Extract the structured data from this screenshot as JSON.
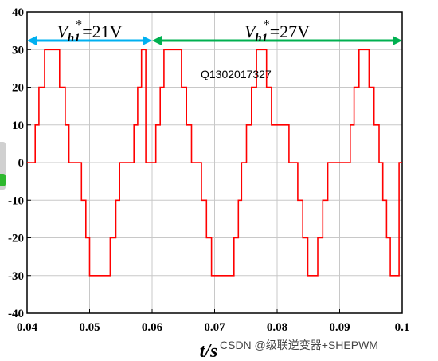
{
  "chart_data": {
    "type": "line",
    "x_ticks": [
      0.04,
      0.05,
      0.06,
      0.07,
      0.08,
      0.09,
      0.1
    ],
    "x_tick_labels": [
      "0.04",
      "0.05",
      "0.06",
      "0.07",
      "0.08",
      "0.09",
      "0.1"
    ],
    "y_ticks": [
      -40,
      -30,
      -20,
      -10,
      0,
      10,
      20,
      30,
      40
    ],
    "y_tick_labels": [
      "-40",
      "-30",
      "-20",
      "-10",
      "0",
      "10",
      "20",
      "30",
      "40"
    ],
    "xlim": [
      0.04,
      0.1
    ],
    "ylim": [
      -40,
      40
    ],
    "grid": true,
    "xlabel": "t/s",
    "ylabel": "",
    "series": [
      {
        "color": "#ff0000",
        "x": [
          0.04,
          0.0413,
          0.0413,
          0.0419,
          0.0419,
          0.0428,
          0.0428,
          0.0452,
          0.0452,
          0.0461,
          0.0461,
          0.0467,
          0.0467,
          0.0474,
          0.0474,
          0.0487,
          0.0487,
          0.0494,
          0.0494,
          0.05,
          0.05,
          0.0509,
          0.0509,
          0.0533,
          0.0533,
          0.0542,
          0.0542,
          0.0548,
          0.0548,
          0.0561,
          0.0561,
          0.0571,
          0.0571,
          0.0577,
          0.0577,
          0.0583,
          0.0583,
          0.059,
          0.059,
          0.06,
          0.06,
          0.0606,
          0.0606,
          0.0613,
          0.0613,
          0.0619,
          0.0619,
          0.0647,
          0.0647,
          0.0655,
          0.0655,
          0.0663,
          0.0663,
          0.0671,
          0.0671,
          0.0679,
          0.0679,
          0.0687,
          0.0687,
          0.0695,
          0.0695,
          0.0703,
          0.0703,
          0.0731,
          0.0731,
          0.0738,
          0.0738,
          0.0743,
          0.0743,
          0.0751,
          0.0751,
          0.0759,
          0.0759,
          0.0767,
          0.0767,
          0.0775,
          0.0775,
          0.0783,
          0.0783,
          0.0791,
          0.0791,
          0.0819,
          0.0819,
          0.0827,
          0.0827,
          0.0833,
          0.0833,
          0.0841,
          0.0841,
          0.0849,
          0.0849,
          0.0857,
          0.0857,
          0.0865,
          0.0865,
          0.0873,
          0.0873,
          0.0881,
          0.0881,
          0.0909,
          0.0909,
          0.0917,
          0.0917,
          0.0923,
          0.0923,
          0.0931,
          0.0931,
          0.0939,
          0.0939,
          0.0947,
          0.0947,
          0.0955,
          0.0955,
          0.0963,
          0.0963,
          0.0969,
          0.0969,
          0.0975,
          0.0975,
          0.0981,
          0.0981,
          0.0995,
          0.0995,
          0.1
        ],
        "y": [
          0,
          0,
          10,
          10,
          20,
          20,
          30,
          30,
          20,
          20,
          10,
          10,
          0,
          0,
          0,
          0,
          -10,
          -10,
          -20,
          -20,
          -30,
          -30,
          -30,
          -30,
          -20,
          -20,
          -10,
          -10,
          0,
          0,
          0,
          0,
          10,
          10,
          20,
          20,
          30,
          30,
          0,
          0,
          0,
          0,
          10,
          10,
          20,
          20,
          30,
          30,
          20,
          20,
          10,
          10,
          0,
          0,
          0,
          0,
          -10,
          -10,
          -20,
          -20,
          -30,
          -30,
          -30,
          -30,
          -20,
          -20,
          -10,
          -10,
          0,
          0,
          10,
          10,
          20,
          20,
          30,
          30,
          30,
          30,
          20,
          20,
          10,
          10,
          0,
          0,
          0,
          0,
          -10,
          -10,
          -20,
          -20,
          -30,
          -30,
          -30,
          -30,
          -20,
          -20,
          -10,
          -10,
          0,
          0,
          0,
          0,
          10,
          10,
          20,
          20,
          30,
          30,
          30,
          30,
          20,
          20,
          10,
          10,
          0,
          0,
          -10,
          -10,
          -20,
          -20,
          -30,
          -30,
          0,
          0
        ]
      }
    ],
    "annotations": [
      {
        "label": "V",
        "subscript": "h1",
        "superscript": "*",
        "text": "=21V",
        "x_from": 0.04,
        "x_to": 0.06,
        "arrow_color": "#00b0f0"
      },
      {
        "label": "V",
        "subscript": "h1",
        "superscript": "*",
        "text": "=27V",
        "x_from": 0.06,
        "x_to": 0.1,
        "arrow_color": "#00b050"
      }
    ]
  },
  "watermark": {
    "text": "Q1302017327",
    "color": "#00c0c0"
  },
  "footer": {
    "text": "CSDN @级联逆变器+SHEPWM"
  }
}
